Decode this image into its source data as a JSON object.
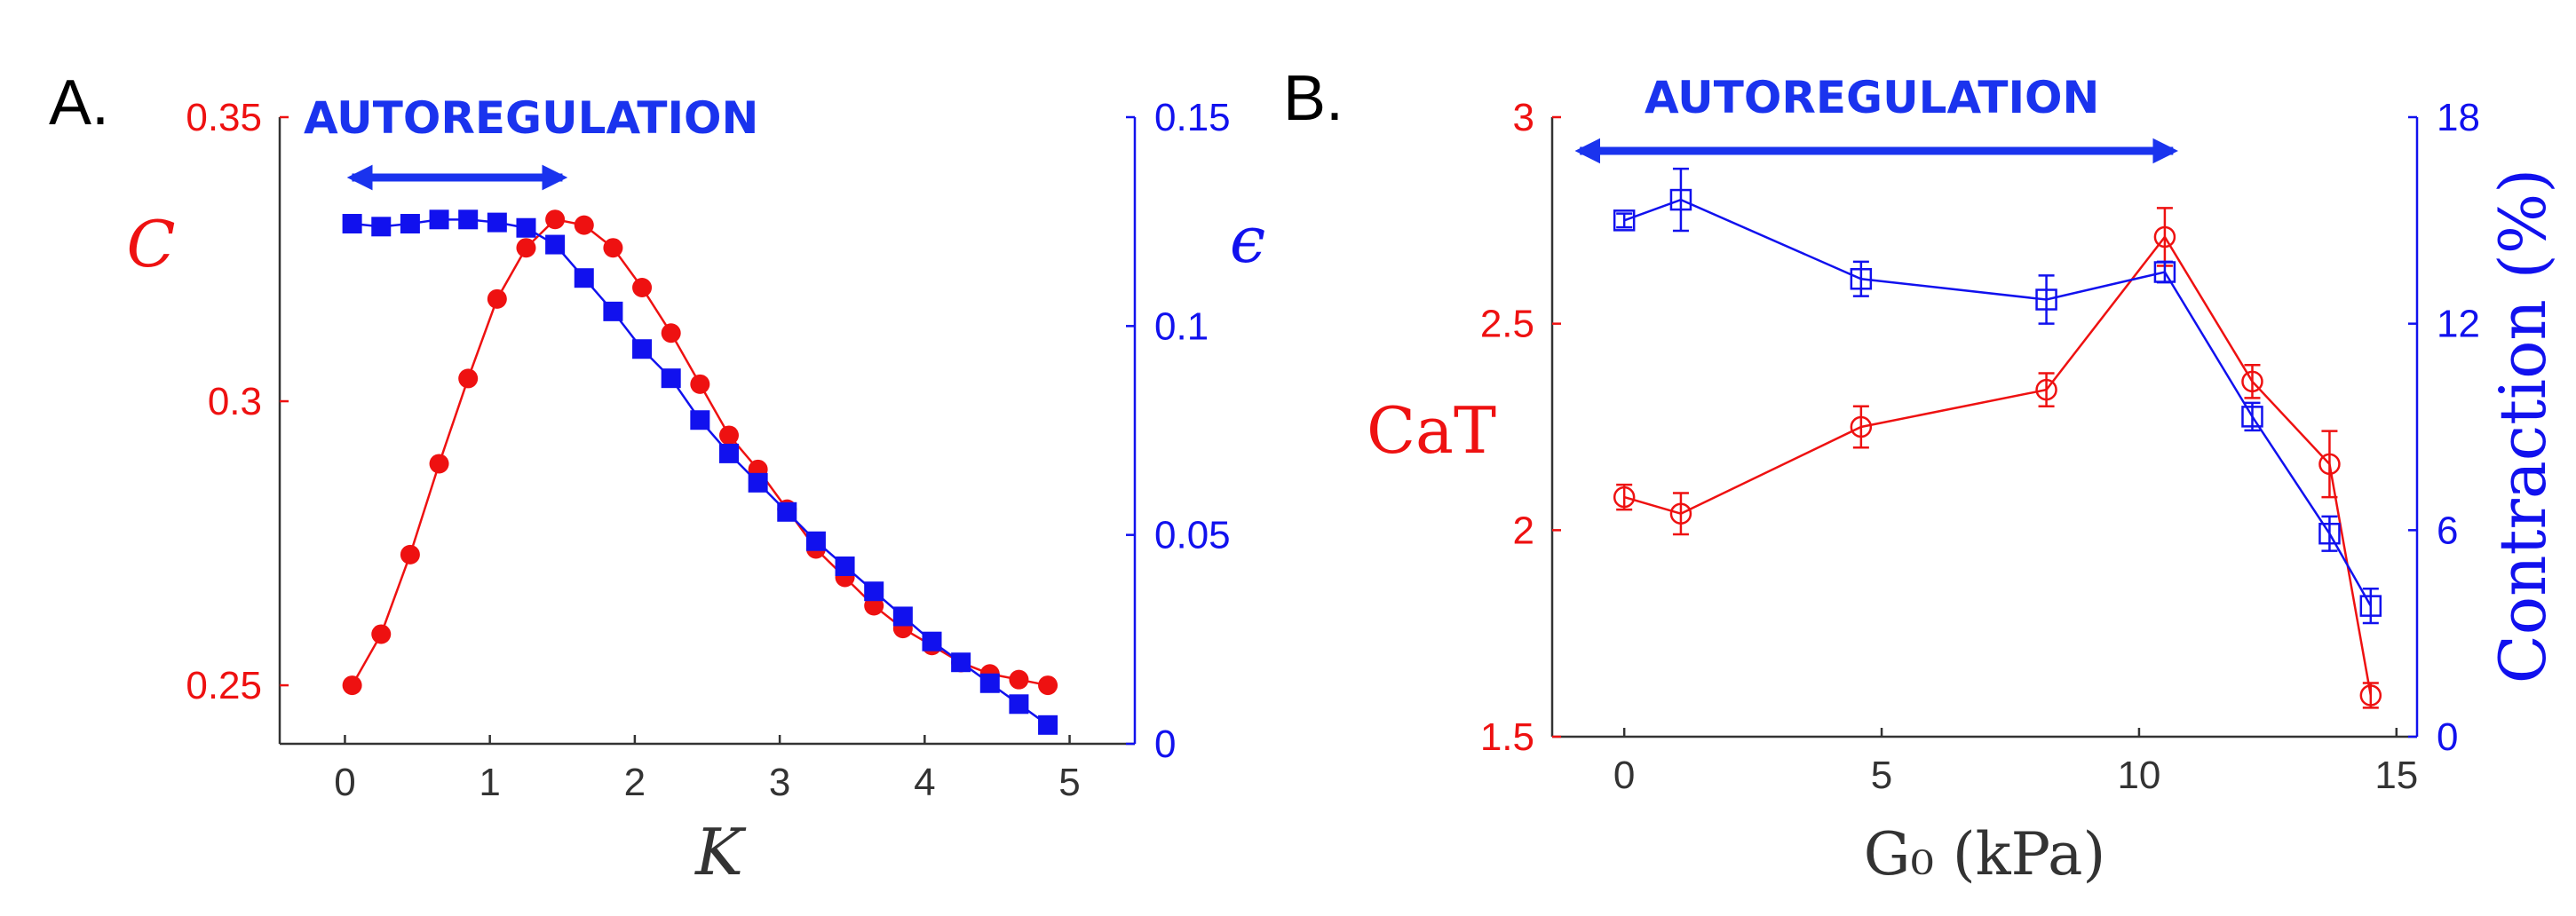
{
  "colors": {
    "red": "#ee1111",
    "blue": "#1111ee",
    "banner": "#1a33ee",
    "axis_dark": "#333333"
  },
  "chart_data": [
    {
      "panel_label": "A.",
      "type": "line",
      "banner": "AUTOREGULATION",
      "banner_arrow": [
        0,
        1.55
      ],
      "xlabel": "K",
      "ylabel_left": "C",
      "ylabel_right": "ϵ",
      "xlim": [
        -0.45,
        5.45
      ],
      "ylim_left": [
        0.2397,
        0.35
      ],
      "ylim_right": [
        0,
        0.15
      ],
      "xticks": [
        "0",
        "1",
        "2",
        "3",
        "4",
        "5"
      ],
      "xtick_values": [
        0,
        1,
        2,
        3,
        4,
        5
      ],
      "yticks_left": [
        "0.25",
        "0.3",
        "0.35"
      ],
      "ytick_values_left": [
        0.25,
        0.3,
        0.35
      ],
      "yticks_right": [
        "0",
        "0.05",
        "0.1",
        "0.15"
      ],
      "ytick_values_right": [
        0,
        0.05,
        0.1,
        0.15
      ],
      "series": [
        {
          "axis": "left",
          "color": "red",
          "marker": "circle-filled",
          "x": [
            0.05,
            0.25,
            0.45,
            0.65,
            0.85,
            1.05,
            1.25,
            1.45,
            1.65,
            1.85,
            2.05,
            2.25,
            2.45,
            2.65,
            2.85,
            3.05,
            3.25,
            3.45,
            3.65,
            3.85,
            4.05,
            4.25,
            4.45,
            4.65,
            4.85
          ],
          "y": [
            0.25,
            0.259,
            0.273,
            0.289,
            0.304,
            0.318,
            0.327,
            0.332,
            0.331,
            0.327,
            0.32,
            0.312,
            0.303,
            0.294,
            0.288,
            0.281,
            0.274,
            0.269,
            0.264,
            0.26,
            0.257,
            0.254,
            0.252,
            0.251,
            0.25
          ]
        },
        {
          "axis": "right",
          "color": "blue",
          "marker": "square-filled",
          "x": [
            0.05,
            0.25,
            0.45,
            0.65,
            0.85,
            1.05,
            1.25,
            1.45,
            1.65,
            1.85,
            2.05,
            2.25,
            2.45,
            2.65,
            2.85,
            3.05,
            3.25,
            3.45,
            3.65,
            3.85,
            4.05,
            4.25,
            4.45,
            4.65,
            4.85
          ],
          "y": [
            0.1245,
            0.1238,
            0.1245,
            0.1255,
            0.1255,
            0.1248,
            0.1235,
            0.1195,
            0.1115,
            0.1035,
            0.0945,
            0.0875,
            0.0775,
            0.0695,
            0.0625,
            0.0555,
            0.0485,
            0.0425,
            0.0365,
            0.0305,
            0.0245,
            0.0195,
            0.0145,
            0.0095,
            0.0045
          ]
        }
      ]
    },
    {
      "panel_label": "B.",
      "type": "line",
      "banner": "AUTOREGULATION",
      "banner_arrow": [
        -1,
        10.8
      ],
      "xlabel": "G₀ (kPa)",
      "ylabel_left": "CaT",
      "ylabel_right": "Contraction (%)",
      "xlim": [
        -1.4,
        15.4
      ],
      "ylim_left": [
        1.5,
        3.0
      ],
      "ylim_right": [
        0,
        18
      ],
      "xticks": [
        "0",
        "5",
        "10",
        "15"
      ],
      "xtick_values": [
        0,
        5,
        10,
        15
      ],
      "yticks_left": [
        "1.5",
        "2",
        "2.5",
        "3"
      ],
      "ytick_values_left": [
        1.5,
        2,
        2.5,
        3
      ],
      "yticks_right": [
        "0",
        "6",
        "12",
        "18"
      ],
      "ytick_values_right": [
        0,
        6,
        12,
        18
      ],
      "series": [
        {
          "axis": "left",
          "color": "red",
          "marker": "circle-open",
          "x": [
            0,
            1.1,
            4.6,
            8.2,
            10.5,
            12.2,
            13.7,
            14.5
          ],
          "y": [
            2.08,
            2.04,
            2.25,
            2.34,
            2.71,
            2.36,
            2.16,
            1.6
          ],
          "err": [
            0.03,
            0.05,
            0.05,
            0.04,
            0.07,
            0.04,
            0.08,
            0.03
          ]
        },
        {
          "axis": "right",
          "color": "blue",
          "marker": "square-open",
          "x": [
            0,
            1.1,
            4.6,
            8.2,
            10.5,
            12.2,
            13.7,
            14.5
          ],
          "y": [
            15.0,
            15.6,
            13.3,
            12.7,
            13.5,
            9.3,
            5.9,
            3.8
          ],
          "err": [
            0.2,
            0.9,
            0.5,
            0.7,
            0.3,
            0.4,
            0.5,
            0.5
          ]
        }
      ]
    }
  ]
}
